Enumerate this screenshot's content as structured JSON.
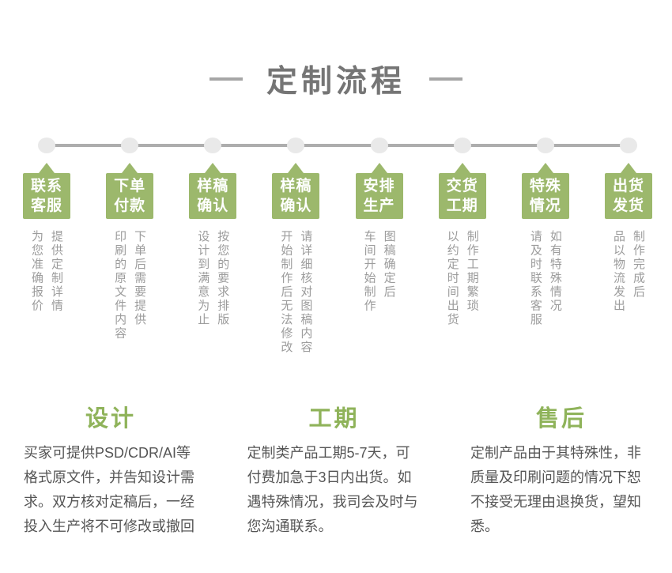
{
  "header": {
    "title": "定制流程"
  },
  "process": {
    "steps": [
      {
        "label": "联系\n客服",
        "desc": "提供定制详情\n为您准确报价"
      },
      {
        "label": "下单\n付款",
        "desc": "下单后需要提供\n印刷的原文件内容"
      },
      {
        "label": "样稿\n确认",
        "desc": "按您的要求排版\n设计到满意为止"
      },
      {
        "label": "样稿\n确认",
        "desc": "请详细核对图稿内容\n开始制作后无法修改"
      },
      {
        "label": "安排\n生产",
        "desc": "图稿确定后\n车间开始制作"
      },
      {
        "label": "交货\n工期",
        "desc": "制作工期繁琐\n以约定时间出货"
      },
      {
        "label": "特殊\n情况",
        "desc": "如有特殊情况\n请及时联系客服"
      },
      {
        "label": "出货\n发货",
        "desc": "制作完成后\n品以物流发出"
      }
    ]
  },
  "sections": [
    {
      "title": "设计",
      "body": "买家可提供PSD/CDR/AI等格式原文件，并告知设计需求。双方核对定稿后，一经投入生产将不可修改或撤回"
    },
    {
      "title": "工期",
      "body": "定制类产品工期5-7天，可付费加急于3日内出货。如遇特殊情况，我司会及时与您沟通联系。"
    },
    {
      "title": "售后",
      "body": "定制产品由于其特殊性，非质量及印刷问题的情况下恕不接受无理由退换货，望知悉。"
    }
  ],
  "colors": {
    "accent_green": "#9CB86C",
    "section_title_green": "#8FB35A",
    "heading_gray": "#757575",
    "dash_gray": "#A6A6A6",
    "timeline_line_gray": "#ADADAD",
    "timeline_dot_gray": "#E9E9E9",
    "step_desc_gray": "#9C9C9C",
    "body_text_gray": "#555555",
    "step_label_white": "#FFFFFF",
    "background": "#FFFFFF"
  }
}
